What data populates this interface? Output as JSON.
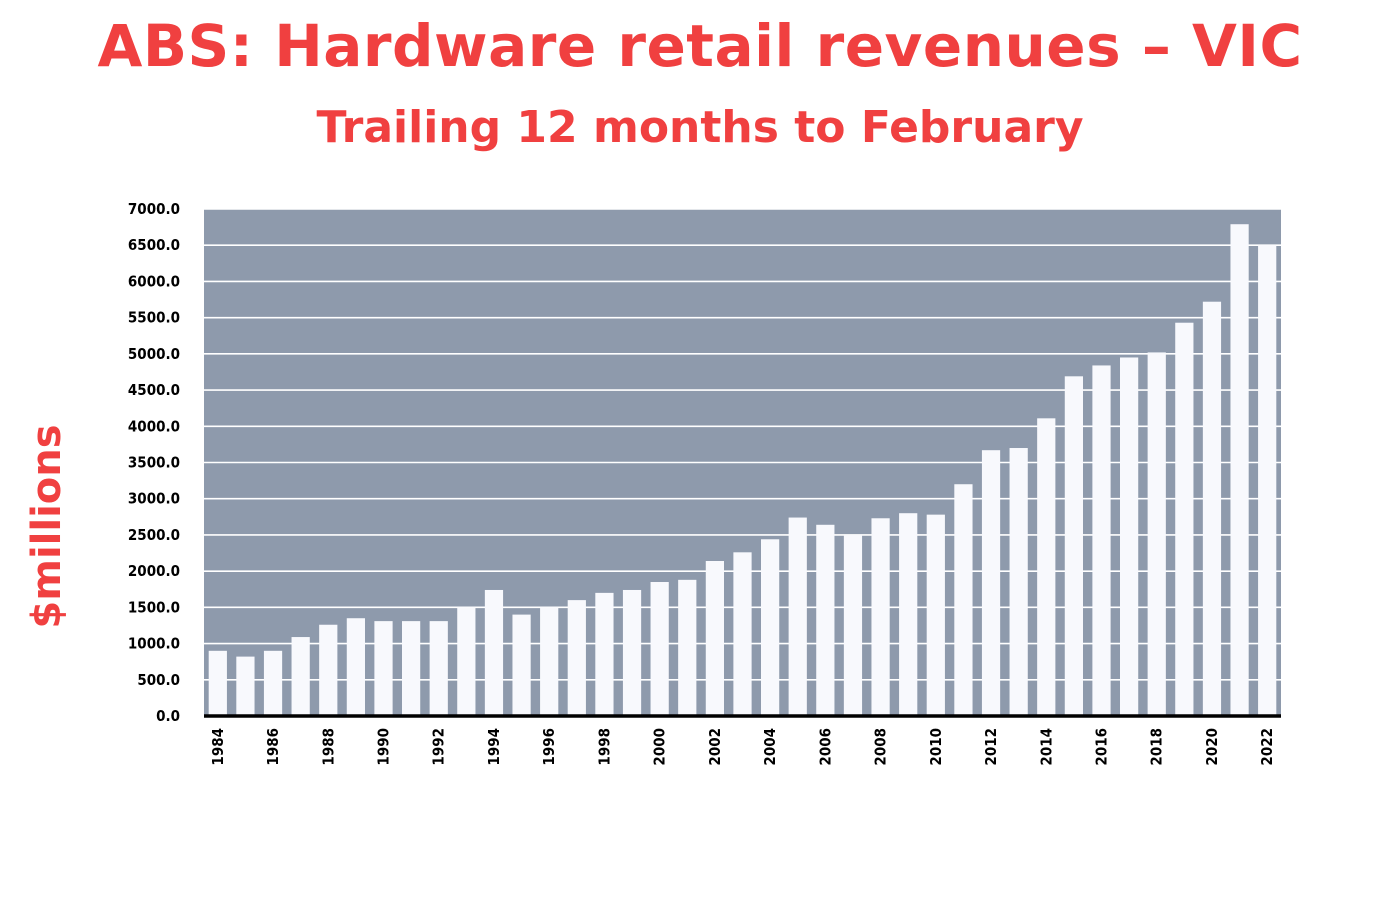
{
  "chart_data": {
    "type": "bar",
    "title": "ABS: Hardware retail revenues – VIC",
    "subtitle": "Trailing 12 months to February",
    "xlabel": "",
    "ylabel": "$millions",
    "ylim": [
      0,
      7000
    ],
    "y_ticks": [
      "0.0",
      "500.0",
      "1000.0",
      "1500.0",
      "2000.0",
      "2500.0",
      "3000.0",
      "3500.0",
      "4000.0",
      "4500.0",
      "5000.0",
      "5500.0",
      "6000.0",
      "6500.0",
      "7000.0"
    ],
    "x_ticks": [
      "1984",
      "1986",
      "1988",
      "1990",
      "1992",
      "1994",
      "1996",
      "1998",
      "2000",
      "2002",
      "2004",
      "2006",
      "2008",
      "2010",
      "2012",
      "2014",
      "2016",
      "2018",
      "2020",
      "2022"
    ],
    "categories": [
      "1984",
      "1985",
      "1986",
      "1987",
      "1988",
      "1989",
      "1990",
      "1991",
      "1992",
      "1993",
      "1994",
      "1995",
      "1996",
      "1997",
      "1998",
      "1999",
      "2000",
      "2001",
      "2002",
      "2003",
      "2004",
      "2005",
      "2006",
      "2007",
      "2008",
      "2009",
      "2010",
      "2011",
      "2012",
      "2013",
      "2014",
      "2015",
      "2016",
      "2017",
      "2018",
      "2019",
      "2020",
      "2021",
      "2022"
    ],
    "values": [
      900,
      820,
      900,
      1090,
      1260,
      1350,
      1310,
      1310,
      1310,
      1500,
      1740,
      1400,
      1500,
      1600,
      1700,
      1740,
      1850,
      1880,
      2140,
      2260,
      2440,
      2740,
      2640,
      2500,
      2730,
      2800,
      2780,
      3200,
      3670,
      3700,
      4110,
      4690,
      4840,
      4950,
      5020,
      5430,
      5720,
      6790,
      6500
    ],
    "grid": true,
    "colors": {
      "title": "#f04040",
      "plot_background": "#8e9aac",
      "bar_fill": "#f8f9fd",
      "gridline": "#ffffff",
      "axis": "#000000"
    }
  }
}
